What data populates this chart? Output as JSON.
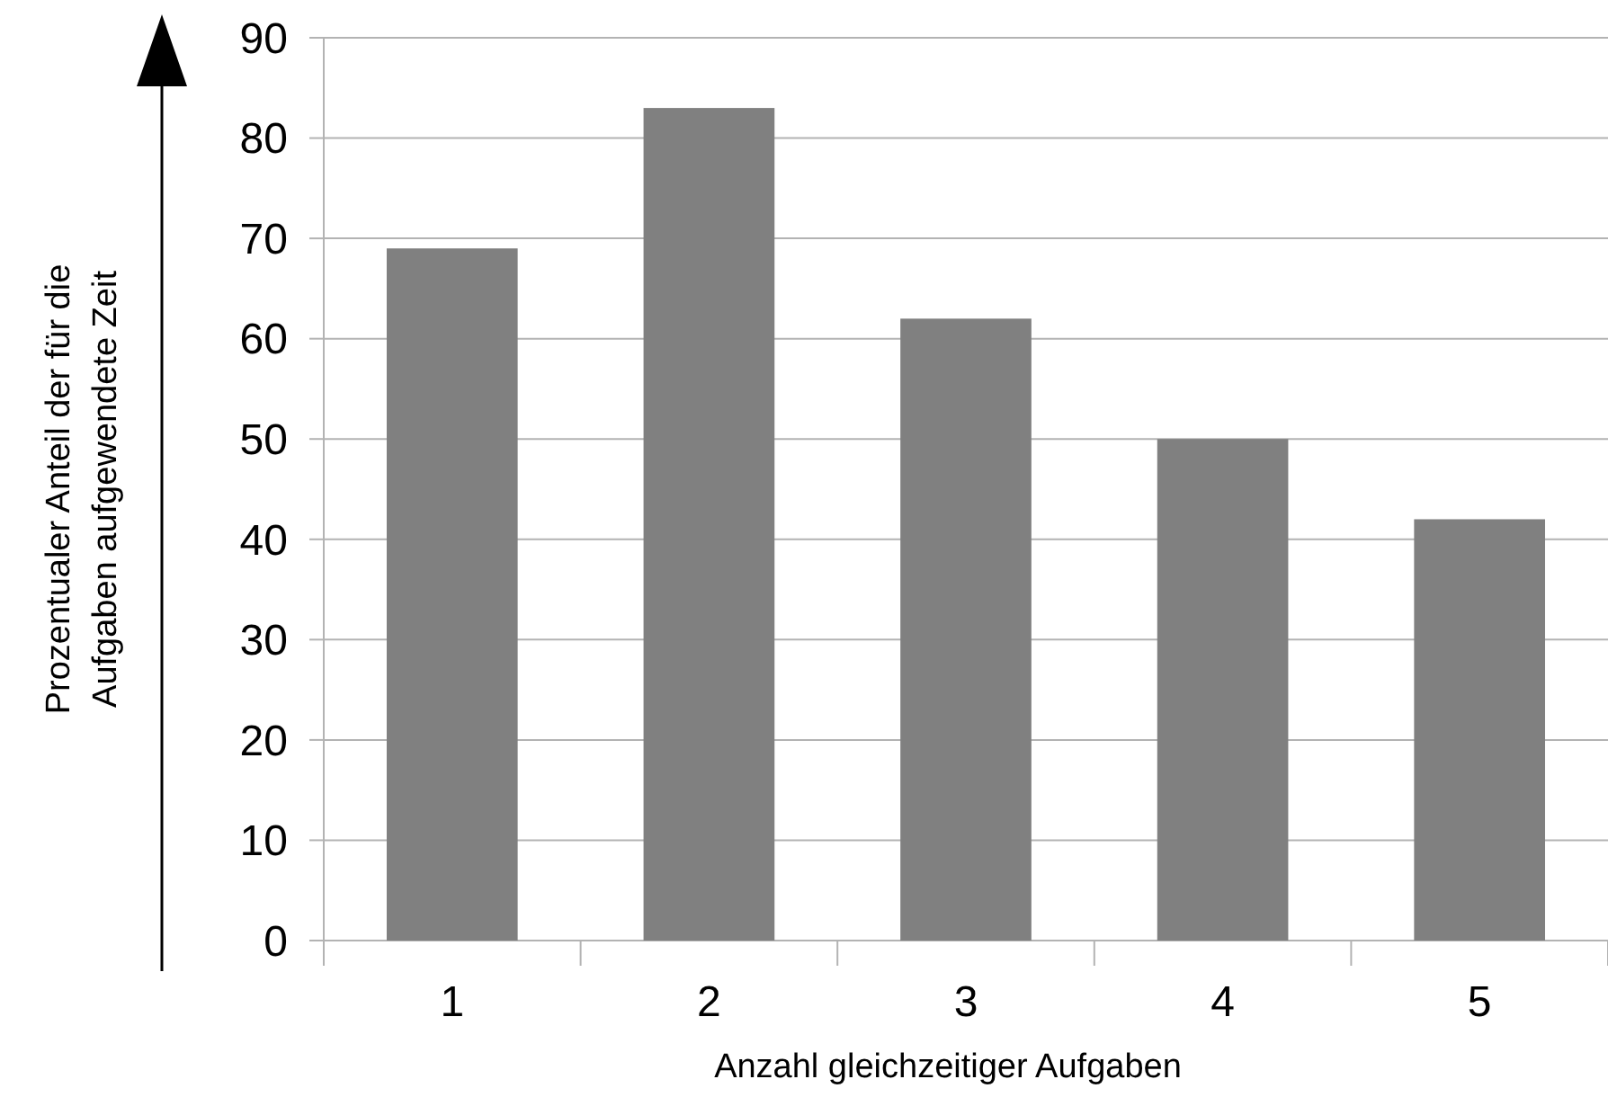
{
  "chart_data": {
    "type": "bar",
    "xlabel": "Anzahl gleichzeitiger Aufgaben",
    "ylabel": "Prozentualer Anteil der für die\nAufgaben aufgewendete Zeit",
    "categories": [
      "1",
      "2",
      "3",
      "4",
      "5"
    ],
    "values": [
      69,
      83,
      62,
      50,
      42
    ],
    "color": "#808080",
    "ylim": [
      0,
      90
    ],
    "yticks": [
      0,
      10,
      20,
      30,
      40,
      50,
      60,
      70,
      80,
      90
    ],
    "grid": "y"
  }
}
